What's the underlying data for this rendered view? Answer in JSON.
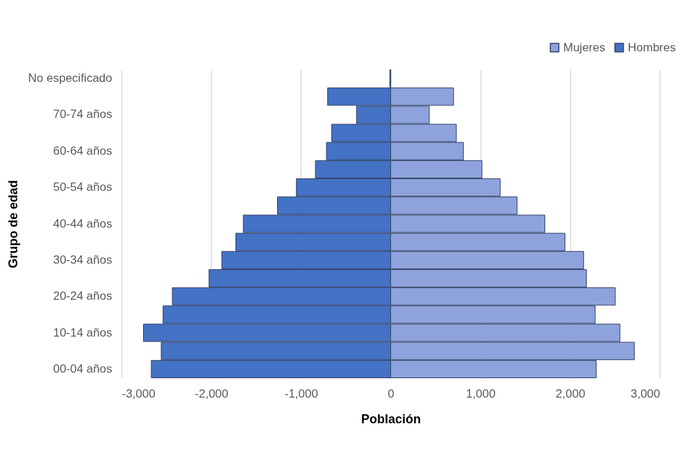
{
  "chart_data": {
    "type": "bar",
    "orientation": "horizontal",
    "xlabel": "Población",
    "ylabel": "Grupo de edad",
    "categories": [
      "No especificado",
      null,
      "70-74 años",
      null,
      "60-64 años",
      null,
      "50-54 años",
      null,
      "40-44 años",
      null,
      "30-34 años",
      null,
      "20-24 años",
      null,
      "10-14 años",
      null,
      "00-04 años"
    ],
    "series": [
      {
        "name": "Mujeres",
        "color": "#8ea3db",
        "values": [
          null,
          701,
          430,
          732,
          811,
          1018,
          1221,
          1409,
          1718,
          1943,
          2151,
          2182,
          2504,
          2280,
          2556,
          2716,
          2291
        ]
      },
      {
        "name": "Hombres",
        "color": "#4472c4",
        "values": [
          -10,
          -703,
          -381,
          -657,
          -716,
          -839,
          -1051,
          -1262,
          -1643,
          -1726,
          -1883,
          -2025,
          -2434,
          -2537,
          -2756,
          -2558,
          -2668
        ]
      }
    ],
    "xlim": [
      -3000,
      3000
    ],
    "xticks": [
      {
        "value": -3000,
        "label": "-3,000"
      },
      {
        "value": -2000,
        "label": "-2,000"
      },
      {
        "value": -1000,
        "label": "-1,000"
      },
      0,
      {
        "value": 1000,
        "label": "1,000"
      },
      {
        "value": 2000,
        "label": "2,000"
      },
      {
        "value": 3000,
        "label": "3,000"
      }
    ],
    "grid": "x",
    "legend": "top right",
    "stacked": true
  }
}
